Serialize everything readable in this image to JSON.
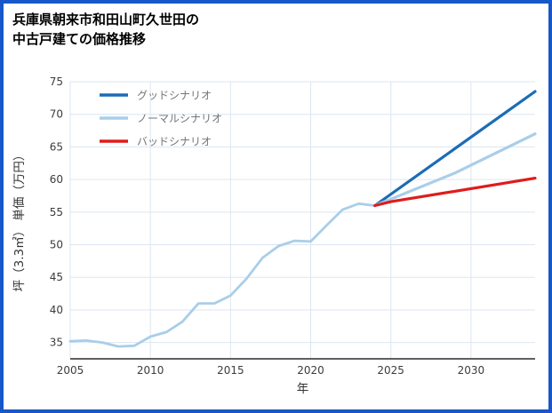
{
  "frame": {
    "border_color": "#1757c8",
    "background": "#ffffff"
  },
  "title": {
    "line1": "兵庫県朝来市和田山町久世田の",
    "line2": "中古戸建ての価格推移"
  },
  "chart_data": {
    "type": "line",
    "title": "兵庫県朝来市和田山町久世田の中古戸建ての価格推移",
    "xlabel": "年",
    "ylabel": "坪（3.3㎡） 単価（万円）",
    "xlim": [
      2005,
      2034
    ],
    "ylim": [
      32.5,
      75
    ],
    "xticks": [
      2005,
      2010,
      2015,
      2020,
      2025,
      2030
    ],
    "yticks": [
      35,
      40,
      45,
      50,
      55,
      60,
      65,
      70,
      75
    ],
    "grid": true,
    "style": {
      "grid_color": "#dce6f1",
      "bottom_axis_color": "#2b2b2b",
      "tick_label_color": "#3c3c3c",
      "axis_label_color": "#333333",
      "legend_text_color": "#757575"
    },
    "legend": {
      "position": "top-left",
      "entries": [
        "グッドシナリオ",
        "ノーマルシナリオ",
        "バッドシナリオ"
      ]
    },
    "series": [
      {
        "id": "historical",
        "in_legend": false,
        "color": "#a9cee8",
        "width": 2.8,
        "points": [
          [
            2005,
            35.2
          ],
          [
            2006,
            35.3
          ],
          [
            2007,
            35.0
          ],
          [
            2008,
            34.4
          ],
          [
            2009,
            34.5
          ],
          [
            2010,
            35.9
          ],
          [
            2011,
            36.6
          ],
          [
            2012,
            38.2
          ],
          [
            2013,
            41.0
          ],
          [
            2014,
            41.0
          ],
          [
            2015,
            42.2
          ],
          [
            2016,
            44.8
          ],
          [
            2017,
            48.0
          ],
          [
            2018,
            49.8
          ],
          [
            2019,
            50.6
          ],
          [
            2020,
            50.5
          ],
          [
            2021,
            53.0
          ],
          [
            2022,
            55.4
          ],
          [
            2023,
            56.3
          ],
          [
            2024,
            56.0
          ]
        ]
      },
      {
        "id": "good-scenario",
        "name": "グッドシナリオ",
        "in_legend": true,
        "color": "#1b6cb5",
        "width": 3.2,
        "points": [
          [
            2024,
            56.0
          ],
          [
            2034,
            73.5
          ]
        ]
      },
      {
        "id": "normal-scenario",
        "name": "ノーマルシナリオ",
        "in_legend": true,
        "color": "#a9cee8",
        "width": 3.2,
        "points": [
          [
            2024,
            56.0
          ],
          [
            2029,
            61.0
          ],
          [
            2034,
            67.0
          ]
        ]
      },
      {
        "id": "bad-scenario",
        "name": "バッドシナリオ",
        "in_legend": true,
        "color": "#e01b1b",
        "width": 3.2,
        "points": [
          [
            2024,
            56.0
          ],
          [
            2025,
            56.6
          ],
          [
            2034,
            60.2
          ]
        ]
      }
    ]
  }
}
